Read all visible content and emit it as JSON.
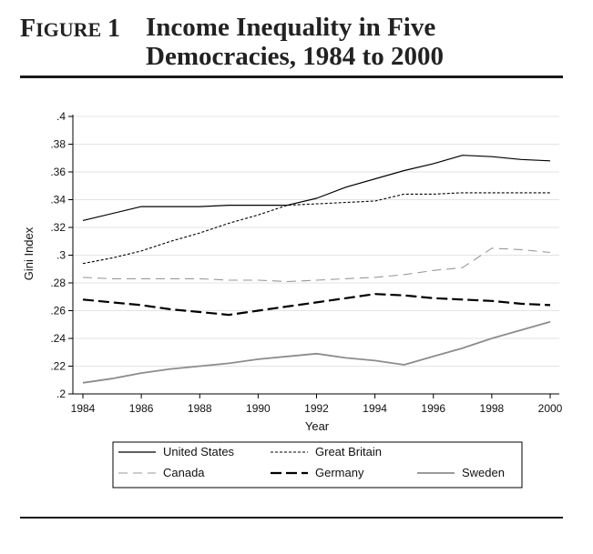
{
  "header": {
    "figure_label_first": "F",
    "figure_label_rest": "IGURE",
    "figure_number": "1",
    "title_line1": "Income Inequality in Five",
    "title_line2": "Democracies, 1984 to 2000"
  },
  "chart_data": {
    "type": "line",
    "title": "Income Inequality in Five Democracies, 1984 to 2000",
    "xlabel": "Year",
    "ylabel": "Gini Index",
    "xlim": [
      1984,
      2000
    ],
    "ylim": [
      0.2,
      0.4
    ],
    "x_ticks": [
      1984,
      1986,
      1988,
      1990,
      1992,
      1994,
      1996,
      1998,
      2000
    ],
    "x_tick_labels": [
      "1984",
      "1986",
      "1988",
      "1990",
      "1992",
      "1994",
      "1996",
      "1998",
      "2000"
    ],
    "y_ticks": [
      0.2,
      0.22,
      0.24,
      0.26,
      0.28,
      0.3,
      0.32,
      0.34,
      0.36,
      0.38,
      0.4
    ],
    "y_tick_labels": [
      ".2",
      ".22",
      ".24",
      ".26",
      ".28",
      ".3",
      ".32",
      ".34",
      ".36",
      ".38",
      ".4"
    ],
    "grid": "horizontal",
    "legend_position": "bottom",
    "series": [
      {
        "name": "United States",
        "style": "solid",
        "color": "#000000",
        "x": [
          1984,
          1986,
          1988,
          1989,
          1991,
          1992,
          1993,
          1995,
          1996,
          1997,
          1998,
          1999,
          2000
        ],
        "y": [
          0.325,
          0.335,
          0.335,
          0.336,
          0.336,
          0.341,
          0.349,
          0.361,
          0.366,
          0.372,
          0.371,
          0.369,
          0.368
        ]
      },
      {
        "name": "Great Britain",
        "style": "short-dash",
        "color": "#000000",
        "x": [
          1984,
          1985,
          1986,
          1987,
          1988,
          1989,
          1990,
          1991,
          1992,
          1993,
          1994,
          1995,
          1996,
          1997,
          1998,
          1999,
          2000
        ],
        "y": [
          0.294,
          0.298,
          0.303,
          0.31,
          0.316,
          0.323,
          0.329,
          0.336,
          0.337,
          0.338,
          0.339,
          0.344,
          0.344,
          0.345,
          0.345,
          0.345,
          0.345
        ]
      },
      {
        "name": "Canada",
        "style": "long-dash",
        "color": "#999999",
        "x": [
          1984,
          1985,
          1986,
          1987,
          1988,
          1989,
          1990,
          1991,
          1992,
          1993,
          1994,
          1995,
          1996,
          1997,
          1998,
          1999,
          2000
        ],
        "y": [
          0.284,
          0.283,
          0.283,
          0.283,
          0.283,
          0.282,
          0.282,
          0.281,
          0.282,
          0.283,
          0.284,
          0.286,
          0.289,
          0.291,
          0.305,
          0.304,
          0.302
        ]
      },
      {
        "name": "Germany",
        "style": "heavy-dash",
        "color": "#000000",
        "x": [
          1984,
          1985,
          1986,
          1987,
          1988,
          1989,
          1990,
          1991,
          1992,
          1993,
          1994,
          1995,
          1996,
          1997,
          1998,
          1999,
          2000
        ],
        "y": [
          0.268,
          0.266,
          0.264,
          0.261,
          0.259,
          0.257,
          0.26,
          0.263,
          0.266,
          0.269,
          0.272,
          0.271,
          0.269,
          0.268,
          0.267,
          0.265,
          0.264
        ]
      },
      {
        "name": "Sweden",
        "style": "solid",
        "color": "#8c8c8c",
        "x": [
          1984,
          1985,
          1986,
          1987,
          1988,
          1989,
          1990,
          1991,
          1992,
          1993,
          1994,
          1995,
          1996,
          1997,
          1998,
          1999,
          2000
        ],
        "y": [
          0.208,
          0.211,
          0.215,
          0.218,
          0.22,
          0.222,
          0.225,
          0.227,
          0.229,
          0.226,
          0.224,
          0.221,
          0.227,
          0.233,
          0.24,
          0.246,
          0.252
        ]
      }
    ]
  }
}
